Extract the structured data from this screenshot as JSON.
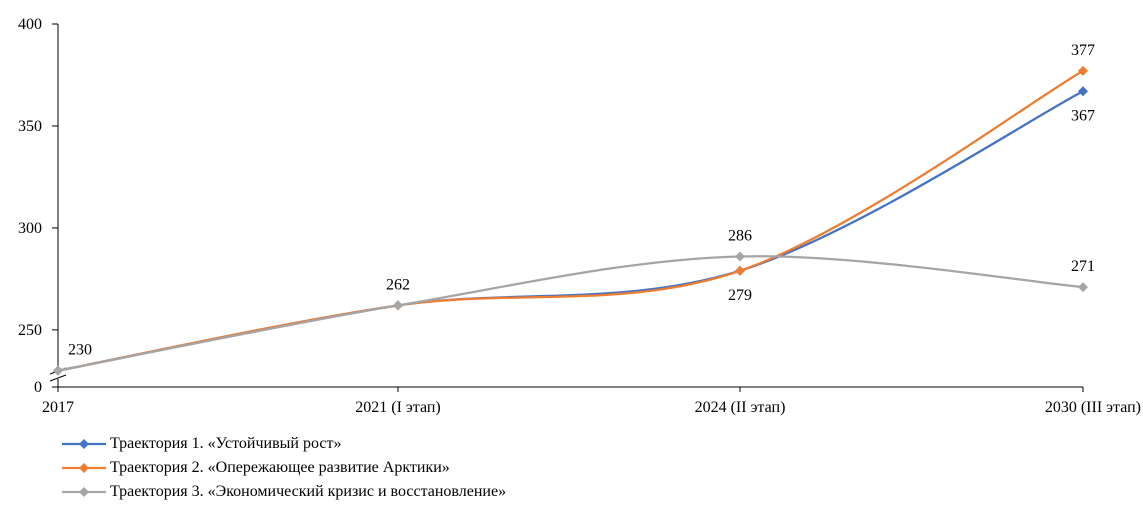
{
  "chart_data": {
    "type": "line",
    "categories": [
      "2017",
      "2021 (I этап)",
      "2024 (II этап)",
      "2030 (III этап)"
    ],
    "y_axis": {
      "break_label": "0",
      "ticks": [
        250,
        300,
        350,
        400
      ],
      "ylim": [
        222,
        400
      ],
      "axis_break": true
    },
    "series": [
      {
        "name": "Траектория 1. «Устойчивый рост»",
        "color": "#4472C4",
        "values": [
          230,
          262,
          279,
          367
        ]
      },
      {
        "name": "Траектория 2. «Опережающее развитие Арктики»",
        "color": "#ED7D31",
        "values": [
          230,
          262,
          279,
          377
        ]
      },
      {
        "name": "Траектория 3. «Экономический кризис и восстановление»",
        "color": "#A5A5A5",
        "values": [
          230,
          262,
          286,
          271
        ]
      }
    ],
    "data_labels": [
      {
        "category_index": 0,
        "text": "230",
        "placement": "above"
      },
      {
        "category_index": 1,
        "text": "262",
        "placement": "above"
      },
      {
        "category_index": 2,
        "text": "286",
        "placement": "above"
      },
      {
        "category_index": 2,
        "text": "279",
        "placement": "below"
      },
      {
        "category_index": 3,
        "text": "377",
        "placement": "above"
      },
      {
        "category_index": 3,
        "text": "367",
        "placement": "below"
      },
      {
        "category_index": 3,
        "text": "271",
        "placement": "above"
      }
    ],
    "legend_position": "bottom-left",
    "grid": false
  }
}
